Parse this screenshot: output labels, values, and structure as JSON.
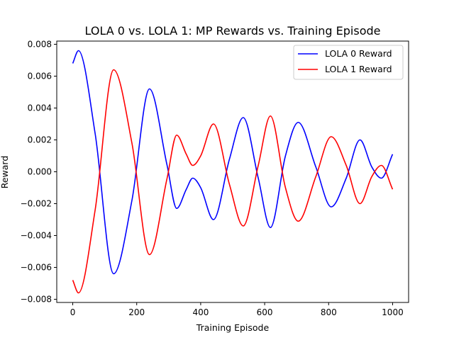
{
  "chart_data": {
    "type": "line",
    "title": "LOLA 0 vs. LOLA 1: MP Rewards vs. Training Episode",
    "xlabel": "Training Episode",
    "ylabel": "Reward",
    "xlim": [
      -50,
      1050
    ],
    "ylim": [
      -0.0082,
      0.0082
    ],
    "xticks": [
      0,
      200,
      400,
      600,
      800,
      1000
    ],
    "xtick_labels": [
      "0",
      "200",
      "400",
      "600",
      "800",
      "1000"
    ],
    "yticks": [
      -0.008,
      -0.006,
      -0.004,
      -0.002,
      0.0,
      0.002,
      0.004,
      0.006,
      0.008
    ],
    "ytick_labels": [
      "−0.008",
      "−0.006",
      "−0.004",
      "−0.002",
      "0.000",
      "0.002",
      "0.004",
      "0.006",
      "0.008"
    ],
    "grid": false,
    "legend_position": "top-right",
    "series": [
      {
        "name": "LOLA 0 Reward",
        "color": "#0000ff",
        "x": [
          0,
          18,
          70,
          128,
          185,
          240,
          295,
          325,
          355,
          375,
          400,
          440,
          490,
          533,
          580,
          618,
          665,
          705,
          760,
          808,
          855,
          898,
          935,
          965,
          1000
        ],
        "y": [
          0.0068,
          0.0076,
          0.0024,
          -0.0064,
          -0.0018,
          0.0052,
          0.0004,
          -0.0023,
          -0.0011,
          -0.0004,
          -0.001,
          -0.003,
          0.0008,
          0.0034,
          -0.0004,
          -0.0035,
          0.001,
          0.0031,
          0.0003,
          -0.0022,
          -0.0004,
          0.002,
          0.0003,
          -0.0004,
          0.0011
        ]
      },
      {
        "name": "LOLA 1 Reward",
        "color": "#ff0000",
        "x": [
          0,
          18,
          70,
          128,
          185,
          240,
          295,
          325,
          355,
          375,
          400,
          440,
          490,
          533,
          580,
          618,
          665,
          705,
          760,
          808,
          855,
          898,
          935,
          965,
          1000
        ],
        "y": [
          -0.0068,
          -0.0076,
          -0.0024,
          0.0064,
          0.0018,
          -0.0052,
          -0.0004,
          0.0023,
          0.0011,
          0.0004,
          0.001,
          0.003,
          -0.0008,
          -0.0034,
          0.0004,
          0.0035,
          -0.001,
          -0.0031,
          -0.0003,
          0.0022,
          0.0004,
          -0.002,
          -0.0003,
          0.0004,
          -0.0011
        ]
      }
    ]
  }
}
